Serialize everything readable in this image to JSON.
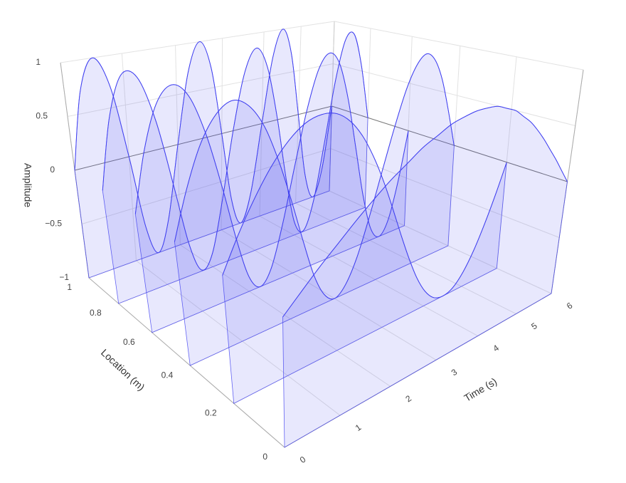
{
  "chart_data": {
    "type": "ribbon3d",
    "x_title": "Time (s)",
    "y_title": "Location (m)",
    "z_title": "Amplitude",
    "x": [
      0,
      0.25,
      0.5,
      0.75,
      1,
      1.25,
      1.5,
      1.75,
      2,
      2.25,
      2.5,
      2.75,
      3,
      3.25,
      3.5,
      3.75,
      4,
      4.25,
      4.5,
      4.75,
      5,
      5.25,
      5.5,
      5.75,
      6
    ],
    "xlim": [
      0,
      6
    ],
    "xticks": [
      0,
      1,
      2,
      3,
      4,
      5,
      6
    ],
    "ylim": [
      0,
      1
    ],
    "yticks": [
      0,
      0.2,
      0.4,
      0.6,
      0.8,
      1
    ],
    "zlim": [
      -1,
      1
    ],
    "zticks": [
      {
        "value": -1,
        "label": "−1"
      },
      {
        "value": -0.5,
        "label": "−0.5"
      },
      0,
      0.5,
      1
    ],
    "color": "#4040f0",
    "fill_opacity": 0.12,
    "grid": true,
    "series": [
      {
        "location": 0,
        "values": [
          0,
          0.13,
          0.26,
          0.38,
          0.5,
          0.61,
          0.71,
          0.79,
          0.87,
          0.92,
          0.97,
          0.99,
          1,
          0.99,
          0.97,
          0.92,
          0.87,
          0.79,
          0.71,
          0.61,
          0.5,
          0.38,
          0.26,
          0.13,
          0
        ]
      },
      {
        "location": 0.2,
        "values": [
          0,
          0.26,
          0.5,
          0.71,
          0.87,
          0.97,
          1,
          0.97,
          0.87,
          0.71,
          0.5,
          0.26,
          0,
          -0.26,
          -0.5,
          -0.71,
          -0.87,
          -0.97,
          -1,
          -0.97,
          -0.87,
          -0.71,
          -0.5,
          -0.26,
          0
        ]
      },
      {
        "location": 0.4,
        "values": [
          0,
          0.38,
          0.71,
          0.92,
          1,
          0.92,
          0.71,
          0.38,
          0,
          -0.38,
          -0.71,
          -0.92,
          -1,
          -0.92,
          -0.71,
          -0.38,
          0,
          0.38,
          0.71,
          0.92,
          1,
          0.92,
          0.71,
          0.38,
          0
        ]
      },
      {
        "location": 0.6,
        "values": [
          0,
          0.5,
          0.87,
          1,
          0.87,
          0.5,
          0,
          -0.5,
          -0.87,
          -1,
          -0.87,
          -0.5,
          0,
          0.5,
          0.87,
          1,
          0.87,
          0.5,
          0,
          -0.5,
          -0.87,
          -1,
          -0.87,
          -0.5,
          0
        ]
      },
      {
        "location": 0.8,
        "values": [
          0,
          0.61,
          0.97,
          0.92,
          0.5,
          -0.13,
          -0.71,
          -0.99,
          -0.87,
          -0.38,
          0.26,
          0.79,
          1,
          0.79,
          0.26,
          -0.38,
          -0.87,
          -0.99,
          -0.71,
          -0.13,
          0.5,
          0.92,
          0.97,
          0.61,
          0
        ]
      },
      {
        "location": 1,
        "values": [
          0,
          0.71,
          1,
          0.71,
          0,
          -0.71,
          -1,
          -0.71,
          0,
          0.71,
          1,
          0.71,
          0,
          -0.71,
          -1,
          -0.71,
          0,
          0.71,
          1,
          0.71,
          0,
          -0.71,
          -1,
          -0.71,
          0
        ]
      }
    ]
  }
}
